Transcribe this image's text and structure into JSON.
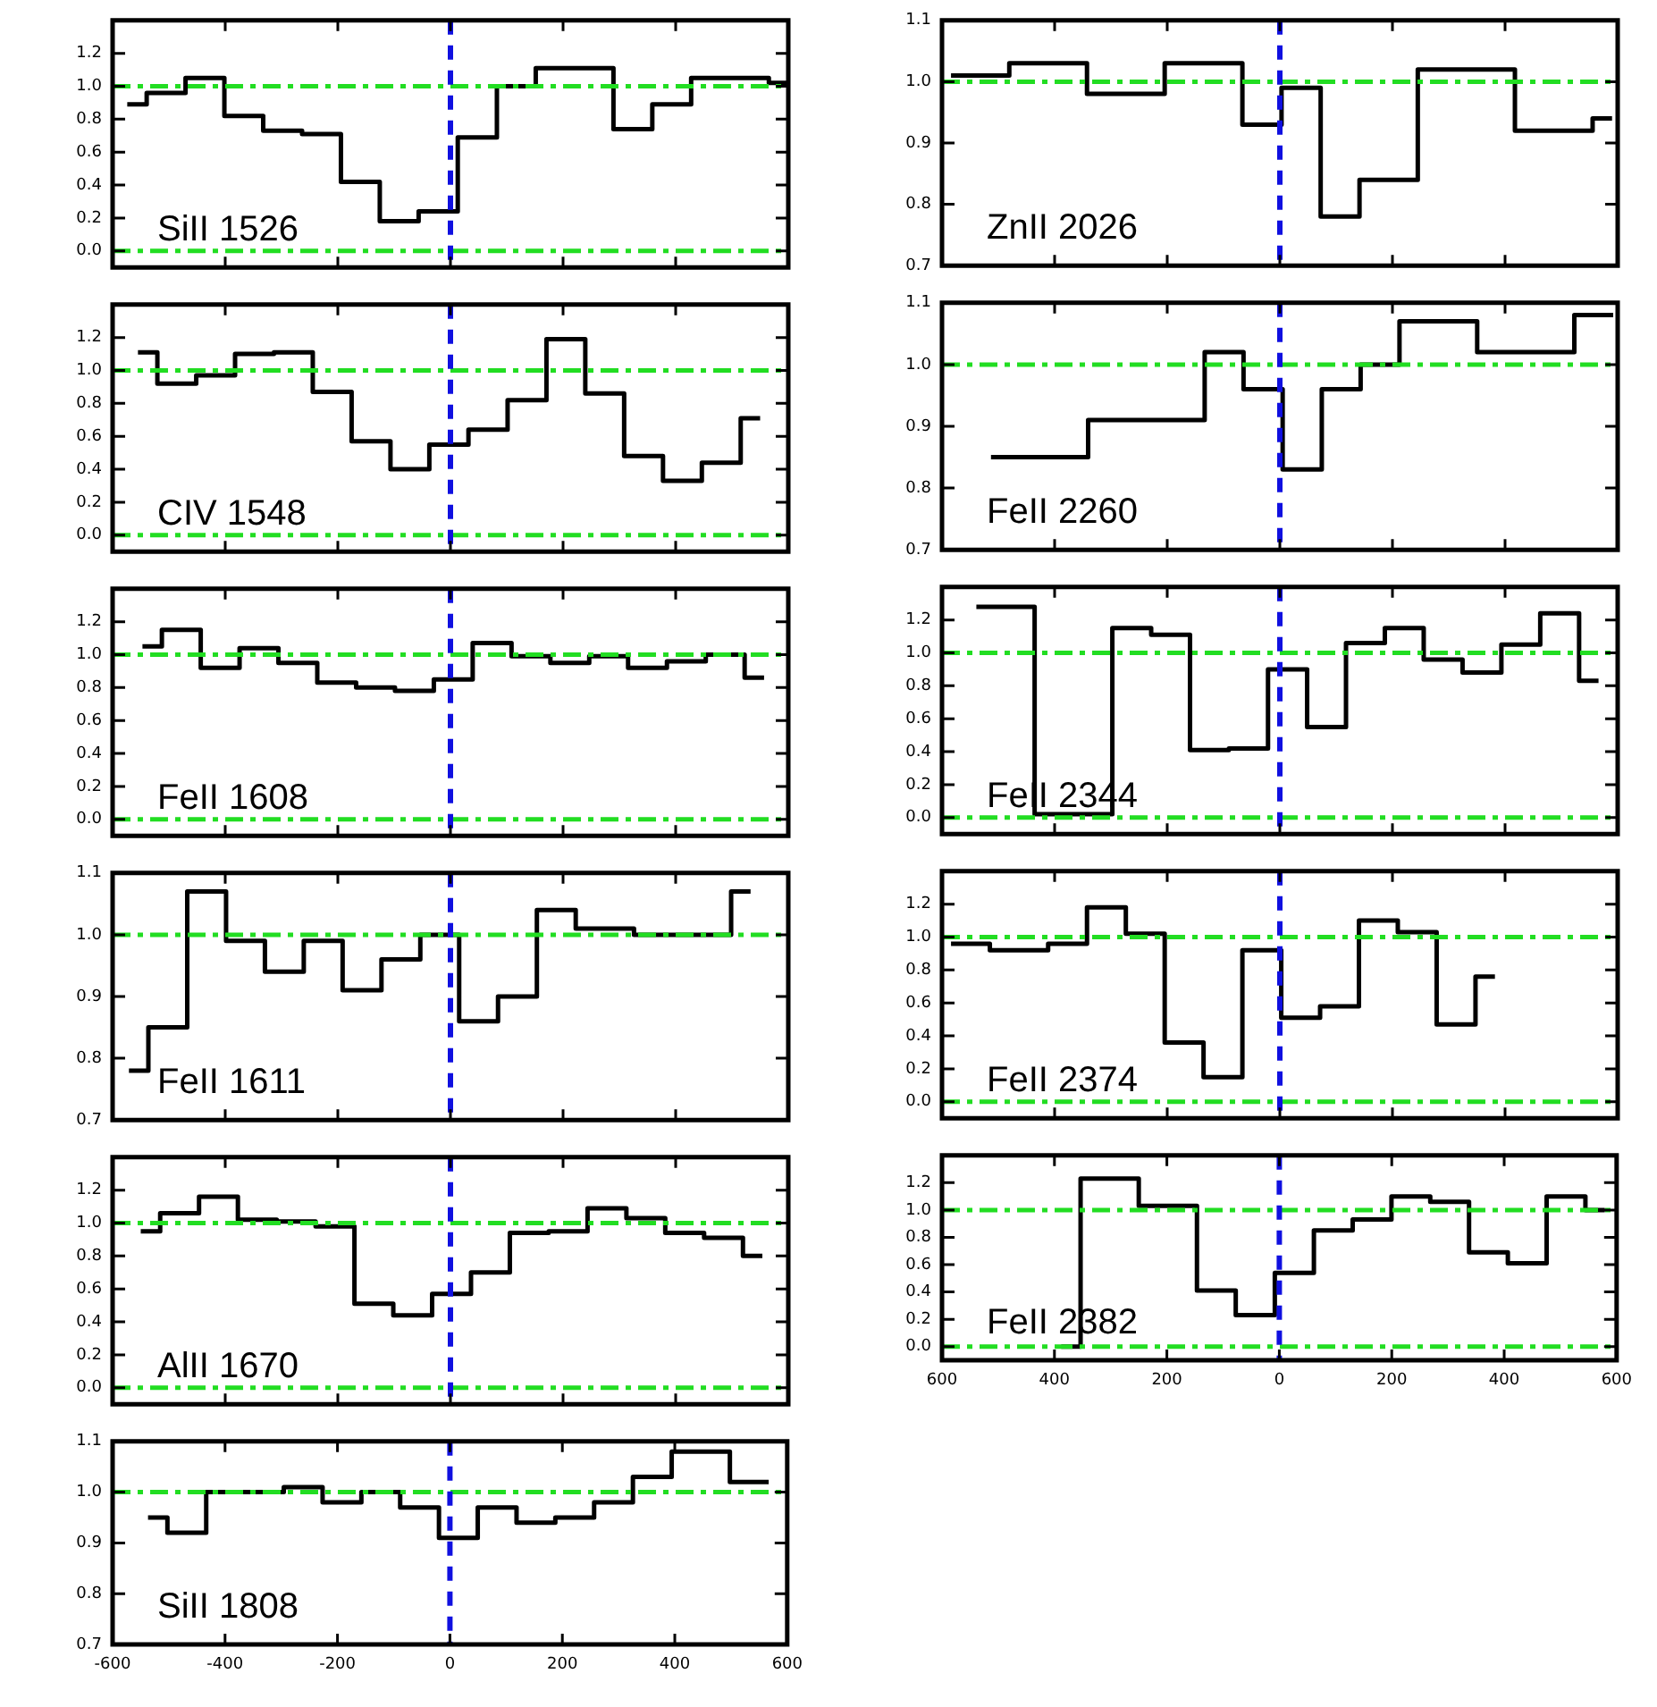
{
  "chart_data": [
    {
      "type": "step",
      "annotations": [
        "SiII 1526"
      ],
      "color": "#000000",
      "x": [
        -574,
        -505,
        -436,
        -367,
        -298,
        -229,
        -160,
        -91,
        -22,
        48,
        117,
        186,
        255,
        324,
        393,
        462,
        531,
        600
      ],
      "values": [
        0.89,
        0.96,
        1.05,
        0.82,
        0.73,
        0.71,
        0.42,
        0.18,
        0.24,
        0.69,
        1.0,
        1.11,
        1.11,
        0.74,
        0.89,
        1.05,
        1.05,
        1.02
      ],
      "xlim": [
        -600,
        600
      ],
      "xticks": [
        -600,
        -400,
        -200,
        0,
        200,
        400,
        600
      ],
      "ylim": [
        -0.1,
        1.4
      ],
      "yticks": [
        {
          "value": 0,
          "label": "0.0"
        },
        {
          "value": 0.2,
          "label": "0.2"
        },
        {
          "value": 0.4,
          "label": "0.4"
        },
        {
          "value": 0.6,
          "label": "0.6"
        },
        {
          "value": 0.8,
          "label": "0.8"
        },
        {
          "value": 1,
          "label": "1.0"
        },
        {
          "value": 1.2,
          "label": "1.2"
        }
      ],
      "tick_labels": "y",
      "ref_lines": [
        {
          "axis": "y",
          "value": 1,
          "color": "#22dd22",
          "line_style": "dashdot"
        },
        {
          "axis": "y",
          "value": 0,
          "color": "#22dd22",
          "line_style": "dashdot"
        },
        {
          "axis": "x",
          "value": 0,
          "color": "#1010e0",
          "line_style": "dashed"
        }
      ]
    },
    {
      "type": "step",
      "annotations": [
        "CIV 1548"
      ],
      "color": "#000000",
      "x": [
        -555,
        -486,
        -417,
        -348,
        -279,
        -210,
        -141,
        -72,
        -3,
        67,
        136,
        205,
        274,
        343,
        412,
        481,
        550
      ],
      "values": [
        1.11,
        0.92,
        0.97,
        1.1,
        1.11,
        0.87,
        0.57,
        0.4,
        0.55,
        0.64,
        0.82,
        1.19,
        0.86,
        0.48,
        0.33,
        0.44,
        0.71
      ],
      "xlim": [
        -600,
        600
      ],
      "xticks": [
        -600,
        -400,
        -200,
        0,
        200,
        400,
        600
      ],
      "ylim": [
        -0.1,
        1.4
      ],
      "yticks": [
        {
          "value": 0,
          "label": "0.0"
        },
        {
          "value": 0.2,
          "label": "0.2"
        },
        {
          "value": 0.4,
          "label": "0.4"
        },
        {
          "value": 0.6,
          "label": "0.6"
        },
        {
          "value": 0.8,
          "label": "0.8"
        },
        {
          "value": 1,
          "label": "1.0"
        },
        {
          "value": 1.2,
          "label": "1.2"
        }
      ],
      "tick_labels": "y",
      "ref_lines": [
        {
          "axis": "y",
          "value": 1,
          "color": "#22dd22",
          "line_style": "dashdot"
        },
        {
          "axis": "y",
          "value": 0,
          "color": "#22dd22",
          "line_style": "dashdot"
        },
        {
          "axis": "x",
          "value": 0,
          "color": "#1010e0",
          "line_style": "dashed"
        }
      ]
    },
    {
      "type": "step",
      "annotations": [
        "FeII 1608"
      ],
      "color": "#000000",
      "x": [
        -547,
        -478,
        -409,
        -340,
        -271,
        -202,
        -133,
        -64,
        5,
        74,
        143,
        212,
        281,
        350,
        419,
        488,
        557
      ],
      "values": [
        1.05,
        1.15,
        0.92,
        1.04,
        0.95,
        0.83,
        0.8,
        0.78,
        0.85,
        1.07,
        0.99,
        0.95,
        0.99,
        0.92,
        0.96,
        1.0,
        0.86
      ],
      "xlim": [
        -600,
        600
      ],
      "xticks": [
        -600,
        -400,
        -200,
        0,
        200,
        400,
        600
      ],
      "ylim": [
        -0.1,
        1.4
      ],
      "yticks": [
        {
          "value": 0,
          "label": "0.0"
        },
        {
          "value": 0.2,
          "label": "0.2"
        },
        {
          "value": 0.4,
          "label": "0.4"
        },
        {
          "value": 0.6,
          "label": "0.6"
        },
        {
          "value": 0.8,
          "label": "0.8"
        },
        {
          "value": 1,
          "label": "1.0"
        },
        {
          "value": 1.2,
          "label": "1.2"
        }
      ],
      "tick_labels": "y",
      "ref_lines": [
        {
          "axis": "y",
          "value": 1,
          "color": "#22dd22",
          "line_style": "dashdot"
        },
        {
          "axis": "y",
          "value": 0,
          "color": "#22dd22",
          "line_style": "dashdot"
        },
        {
          "axis": "x",
          "value": 0,
          "color": "#1010e0",
          "line_style": "dashed"
        }
      ]
    },
    {
      "type": "step",
      "annotations": [
        "FeII 1611"
      ],
      "color": "#000000",
      "x": [
        -571,
        -502,
        -433,
        -364,
        -295,
        -226,
        -157,
        -88,
        -19,
        50,
        119,
        188,
        257,
        395,
        464,
        533
      ],
      "values": [
        0.78,
        0.85,
        1.07,
        0.99,
        0.94,
        0.99,
        0.91,
        0.96,
        1.0,
        0.86,
        0.9,
        1.04,
        1.01,
        1.0,
        1.0,
        1.07
      ],
      "xlim": [
        -600,
        600
      ],
      "xticks": [
        -600,
        -400,
        -200,
        0,
        200,
        400,
        600
      ],
      "ylim": [
        0.7,
        1.1
      ],
      "yticks": [
        {
          "value": 0.7,
          "label": "0.7"
        },
        {
          "value": 0.8,
          "label": "0.8"
        },
        {
          "value": 0.9,
          "label": "0.9"
        },
        {
          "value": 1,
          "label": "1.0"
        },
        {
          "value": 1.1,
          "label": "1.1"
        }
      ],
      "tick_labels": "y",
      "ref_lines": [
        {
          "axis": "y",
          "value": 1,
          "color": "#22dd22",
          "line_style": "dashdot"
        },
        {
          "axis": "x",
          "value": 0,
          "color": "#1010e0",
          "line_style": "dashed"
        }
      ]
    },
    {
      "type": "step",
      "annotations": [
        "AlII 1670"
      ],
      "color": "#000000",
      "x": [
        -550,
        -481,
        -412,
        -343,
        -274,
        -205,
        -136,
        -67,
        2,
        71,
        140,
        209,
        278,
        347,
        416,
        485,
        554
      ],
      "values": [
        0.95,
        1.06,
        1.16,
        1.02,
        1.01,
        0.98,
        0.51,
        0.44,
        0.57,
        0.7,
        0.94,
        0.95,
        1.09,
        1.03,
        0.94,
        0.91,
        0.8
      ],
      "xlim": [
        -600,
        600
      ],
      "xticks": [
        -600,
        -400,
        -200,
        0,
        200,
        400,
        600
      ],
      "ylim": [
        -0.1,
        1.4
      ],
      "yticks": [
        {
          "value": 0,
          "label": "0.0"
        },
        {
          "value": 0.2,
          "label": "0.2"
        },
        {
          "value": 0.4,
          "label": "0.4"
        },
        {
          "value": 0.6,
          "label": "0.6"
        },
        {
          "value": 0.8,
          "label": "0.8"
        },
        {
          "value": 1,
          "label": "1.0"
        },
        {
          "value": 1.2,
          "label": "1.2"
        }
      ],
      "tick_labels": "y",
      "ref_lines": [
        {
          "axis": "y",
          "value": 1,
          "color": "#22dd22",
          "line_style": "dashdot"
        },
        {
          "axis": "y",
          "value": 0,
          "color": "#22dd22",
          "line_style": "dashdot"
        },
        {
          "axis": "x",
          "value": 0,
          "color": "#1010e0",
          "line_style": "dashed"
        }
      ]
    },
    {
      "type": "step",
      "annotations": [
        "SiII 1808"
      ],
      "color": "#000000",
      "x": [
        -537,
        -468,
        -399,
        -330,
        -261,
        -192,
        -123,
        -54,
        15,
        84,
        153,
        222,
        291,
        360,
        429,
        567
      ],
      "values": [
        0.95,
        0.92,
        1.0,
        1.0,
        1.01,
        0.98,
        1.0,
        0.97,
        0.91,
        0.97,
        0.94,
        0.95,
        0.98,
        1.03,
        1.08,
        1.02
      ],
      "xlim": [
        -600,
        600
      ],
      "xticks": [
        -600,
        -400,
        -200,
        0,
        200,
        400,
        600
      ],
      "ylim": [
        0.7,
        1.1
      ],
      "yticks": [
        {
          "value": 0.7,
          "label": "0.7"
        },
        {
          "value": 0.8,
          "label": "0.8"
        },
        {
          "value": 0.9,
          "label": "0.9"
        },
        {
          "value": 1,
          "label": "1.0"
        },
        {
          "value": 1.1,
          "label": "1.1"
        }
      ],
      "ref_lines": [
        {
          "axis": "y",
          "value": 1,
          "color": "#22dd22",
          "line_style": "dashdot"
        },
        {
          "axis": "x",
          "value": 0,
          "color": "#1010e0",
          "line_style": "dashed"
        }
      ]
    },
    {
      "type": "step",
      "annotations": [
        "ZnII 2026"
      ],
      "color": "#000000",
      "x": [
        -584,
        -377,
        -308,
        -101,
        -32,
        38,
        107,
        176,
        314,
        521,
        590
      ],
      "values": [
        1.01,
        1.03,
        0.98,
        1.03,
        0.93,
        0.99,
        0.78,
        0.84,
        1.02,
        0.92,
        0.94
      ],
      "xlim": [
        -600,
        600
      ],
      "xticks": [
        -600,
        -400,
        -200,
        0,
        200,
        400,
        600
      ],
      "ylim": [
        0.7,
        1.1
      ],
      "yticks": [
        {
          "value": 0.7,
          "label": "0.7"
        },
        {
          "value": 0.8,
          "label": "0.8"
        },
        {
          "value": 0.9,
          "label": "0.9"
        },
        {
          "value": 1,
          "label": "1.0"
        },
        {
          "value": 1.1,
          "label": "1.1"
        }
      ],
      "tick_labels": "y",
      "ref_lines": [
        {
          "axis": "y",
          "value": 1,
          "color": "#22dd22",
          "line_style": "dashdot"
        },
        {
          "axis": "x",
          "value": 0,
          "color": "#1010e0",
          "line_style": "dashed"
        }
      ]
    },
    {
      "type": "step",
      "annotations": [
        "FeII 2260"
      ],
      "color": "#000000",
      "x": [
        -513,
        -168,
        -99,
        -30,
        40,
        109,
        178,
        247,
        316,
        385,
        454,
        592
      ],
      "values": [
        0.85,
        0.91,
        1.02,
        0.96,
        0.83,
        0.96,
        1.0,
        1.07,
        1.07,
        1.02,
        1.02,
        1.08
      ],
      "xlim": [
        -600,
        600
      ],
      "xticks": [
        -600,
        -400,
        -200,
        0,
        200,
        400,
        600
      ],
      "ylim": [
        0.7,
        1.1
      ],
      "yticks": [
        {
          "value": 0.7,
          "label": "0.7"
        },
        {
          "value": 0.8,
          "label": "0.8"
        },
        {
          "value": 0.9,
          "label": "0.9"
        },
        {
          "value": 1,
          "label": "1.0"
        },
        {
          "value": 1.1,
          "label": "1.1"
        }
      ],
      "tick_labels": "y",
      "ref_lines": [
        {
          "axis": "y",
          "value": 1,
          "color": "#22dd22",
          "line_style": "dashdot"
        },
        {
          "axis": "x",
          "value": 0,
          "color": "#1010e0",
          "line_style": "dashed"
        }
      ]
    },
    {
      "type": "step",
      "annotations": [
        "FeII 2344"
      ],
      "color": "#000000",
      "x": [
        -539,
        -332,
        -263,
        -194,
        -125,
        -56,
        14,
        83,
        152,
        221,
        290,
        359,
        428,
        497,
        566
      ],
      "values": [
        1.28,
        0.02,
        1.15,
        1.11,
        0.41,
        0.42,
        0.9,
        0.55,
        1.06,
        1.15,
        0.96,
        0.88,
        1.05,
        1.24,
        0.83
      ],
      "xlim": [
        -600,
        600
      ],
      "xticks": [
        -600,
        -400,
        -200,
        0,
        200,
        400,
        600
      ],
      "ylim": [
        -0.1,
        1.4
      ],
      "yticks": [
        {
          "value": 0,
          "label": "0.0"
        },
        {
          "value": 0.2,
          "label": "0.2"
        },
        {
          "value": 0.4,
          "label": "0.4"
        },
        {
          "value": 0.6,
          "label": "0.6"
        },
        {
          "value": 0.8,
          "label": "0.8"
        },
        {
          "value": 1,
          "label": "1.0"
        },
        {
          "value": 1.2,
          "label": "1.2"
        }
      ],
      "tick_labels": "y",
      "ref_lines": [
        {
          "axis": "y",
          "value": 1,
          "color": "#22dd22",
          "line_style": "dashdot"
        },
        {
          "axis": "y",
          "value": 0,
          "color": "#22dd22",
          "line_style": "dashdot"
        },
        {
          "axis": "x",
          "value": 0,
          "color": "#1010e0",
          "line_style": "dashed"
        }
      ]
    },
    {
      "type": "step",
      "annotations": [
        "FeII 2374"
      ],
      "color": "#000000",
      "x": [
        -584,
        -446,
        -377,
        -308,
        -239,
        -170,
        -101,
        -32,
        37,
        106,
        175,
        244,
        313,
        382
      ],
      "values": [
        0.96,
        0.92,
        0.96,
        1.18,
        1.02,
        0.36,
        0.15,
        0.92,
        0.51,
        0.58,
        1.1,
        1.03,
        0.47,
        0.76
      ],
      "xlim": [
        -600,
        600
      ],
      "xticks": [
        -600,
        -400,
        -200,
        0,
        200,
        400,
        600
      ],
      "ylim": [
        -0.1,
        1.4
      ],
      "yticks": [
        {
          "value": 0,
          "label": "0.0"
        },
        {
          "value": 0.2,
          "label": "0.2"
        },
        {
          "value": 0.4,
          "label": "0.4"
        },
        {
          "value": 0.6,
          "label": "0.6"
        },
        {
          "value": 0.8,
          "label": "0.8"
        },
        {
          "value": 1,
          "label": "1.0"
        },
        {
          "value": 1.2,
          "label": "1.2"
        }
      ],
      "tick_labels": "y",
      "ref_lines": [
        {
          "axis": "y",
          "value": 1,
          "color": "#22dd22",
          "line_style": "dashdot"
        },
        {
          "axis": "y",
          "value": 0,
          "color": "#22dd22",
          "line_style": "dashdot"
        },
        {
          "axis": "x",
          "value": 0,
          "color": "#1010e0",
          "line_style": "dashed"
        }
      ]
    },
    {
      "type": "step",
      "annotations": [
        "FeII 2382"
      ],
      "color": "#000000",
      "x": [
        -388,
        -319,
        -181,
        -112,
        -43,
        27,
        96,
        165,
        234,
        303,
        372,
        441,
        510,
        579
      ],
      "values": [
        0.0,
        1.23,
        1.03,
        0.41,
        0.23,
        0.54,
        0.85,
        0.93,
        1.1,
        1.06,
        0.69,
        0.61,
        1.1,
        1.0
      ],
      "xlim": [
        -600,
        600
      ],
      "xticks": [
        {
          "value": -600,
          "label": "600"
        },
        {
          "value": -400,
          "label": "400"
        },
        {
          "value": -200,
          "label": "200"
        },
        0,
        200,
        400,
        600
      ],
      "ylim": [
        -0.1,
        1.4
      ],
      "yticks": [
        {
          "value": 0,
          "label": "0.0"
        },
        {
          "value": 0.2,
          "label": "0.2"
        },
        {
          "value": 0.4,
          "label": "0.4"
        },
        {
          "value": 0.6,
          "label": "0.6"
        },
        {
          "value": 0.8,
          "label": "0.8"
        },
        {
          "value": 1,
          "label": "1.0"
        },
        {
          "value": 1.2,
          "label": "1.2"
        }
      ],
      "ref_lines": [
        {
          "axis": "y",
          "value": 1,
          "color": "#22dd22",
          "line_style": "dashdot"
        },
        {
          "axis": "y",
          "value": 0,
          "color": "#22dd22",
          "line_style": "dashdot"
        },
        {
          "axis": "x",
          "value": 0,
          "color": "#1010e0",
          "line_style": "dashed"
        }
      ]
    }
  ]
}
